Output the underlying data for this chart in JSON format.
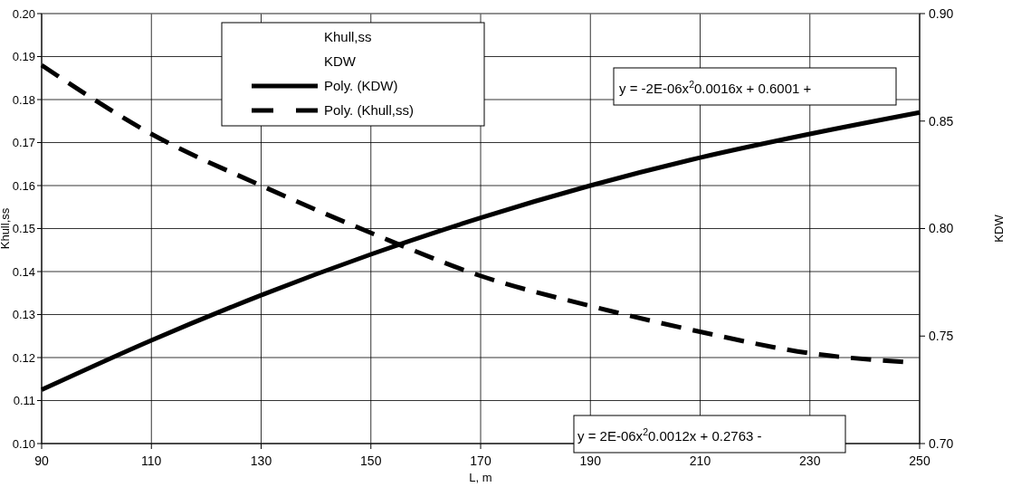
{
  "chart_data": {
    "type": "line",
    "xlabel": "L, m",
    "ylabel": "Khull,ss",
    "y2label": "KDW",
    "x": [
      90,
      110,
      130,
      150,
      170,
      190,
      210,
      230,
      250
    ],
    "series": [
      {
        "name": "Poly. (KDW)",
        "color": "#000000",
        "axis": "y2",
        "line_style": "solid",
        "values": [
          0.725,
          0.748,
          0.769,
          0.788,
          0.805,
          0.82,
          0.833,
          0.844,
          0.854
        ]
      },
      {
        "name": "Poly. (Khull,ss)",
        "color": "#000000",
        "line_style": "dashed",
        "x": [
          90,
          110,
          130,
          150,
          170,
          190,
          210,
          230,
          247
        ],
        "values": [
          0.188,
          0.172,
          0.16,
          0.149,
          0.139,
          0.132,
          0.126,
          0.121,
          0.119
        ]
      }
    ],
    "xlim": [
      90,
      250
    ],
    "xticks": [
      90,
      110,
      130,
      150,
      170,
      190,
      210,
      230,
      250
    ],
    "ylim": [
      0.1,
      0.2
    ],
    "yticks": [
      {
        "value": 0.1,
        "label": "0.10"
      },
      {
        "value": 0.11,
        "label": "0.11"
      },
      {
        "value": 0.12,
        "label": "0.12"
      },
      {
        "value": 0.13,
        "label": "0.13"
      },
      {
        "value": 0.14,
        "label": "0.14"
      },
      {
        "value": 0.15,
        "label": "0.15"
      },
      {
        "value": 0.16,
        "label": "0.16"
      },
      {
        "value": 0.17,
        "label": "0.17"
      },
      {
        "value": 0.18,
        "label": "0.18"
      },
      {
        "value": 0.19,
        "label": "0.19"
      },
      {
        "value": 0.2,
        "label": "0.20"
      }
    ],
    "y2lim": [
      0.7,
      0.9
    ],
    "y2ticks": [
      {
        "value": 0.7,
        "label": "0.70"
      },
      {
        "value": 0.75,
        "label": "0.75"
      },
      {
        "value": 0.8,
        "label": "0.80"
      },
      {
        "value": 0.85,
        "label": "0.85"
      },
      {
        "value": 0.9,
        "label": "0.90"
      }
    ],
    "grid": true,
    "legend": "top left",
    "marker": "none",
    "legend_title": "Khull,ss",
    "annotations": [
      "KDW",
      "y = -2E-06x$^{2}$0.0016x + 0.6001 +",
      "y = 2E-06x$^{2}$0.0012x + 0.2763 -"
    ]
  }
}
